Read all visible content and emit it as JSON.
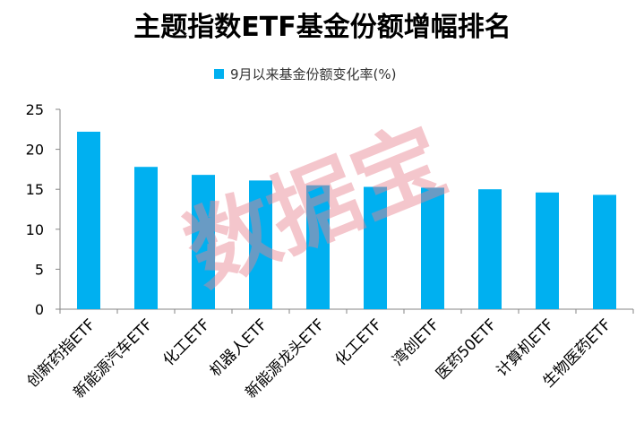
{
  "chart_data": {
    "type": "bar",
    "title": "主题指数ETF基金份额增幅排名",
    "legend": {
      "label": "9月以来基金份额变化率(%)",
      "position": "top"
    },
    "categories": [
      "创新药指ETF",
      "新能源汽车ETF",
      "化工ETF",
      "机器人ETF",
      "新能源龙头ETF",
      "化工ETF",
      "湾创ETF",
      "医药50ETF",
      "计算机ETF",
      "生物医药ETF"
    ],
    "series": [
      {
        "name": "9月以来基金份额变化率(%)",
        "values": [
          22.2,
          17.8,
          16.8,
          16.1,
          15.5,
          15.3,
          15.2,
          15.0,
          14.6,
          14.3
        ]
      }
    ],
    "ylim": [
      0,
      25
    ],
    "yticks": [
      0,
      5,
      10,
      15,
      20,
      25
    ],
    "grid": false,
    "bar_color": "#00B0F0",
    "watermark": "数据宝"
  }
}
